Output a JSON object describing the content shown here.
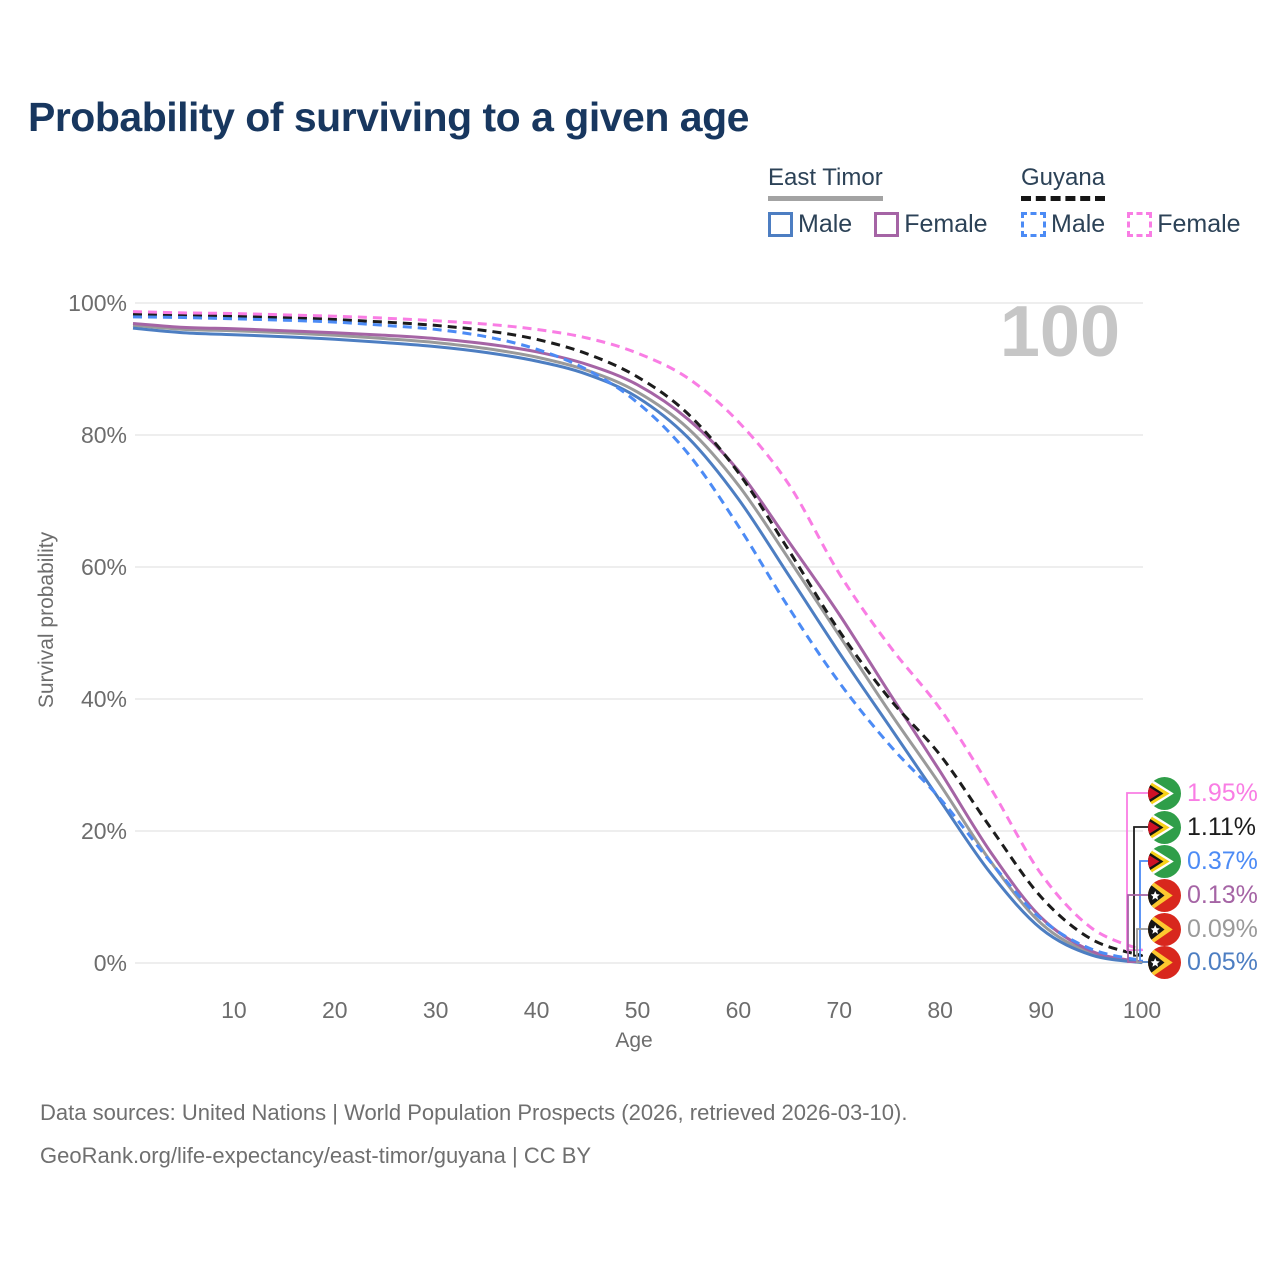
{
  "title": "Probability of surviving to a given age",
  "watermark": "100",
  "legend": {
    "groups": [
      {
        "label": "East Timor",
        "line_style": "solid",
        "underline_color": "#a3a3a3",
        "items": [
          {
            "label": "Male",
            "color": "#4d7ec2"
          },
          {
            "label": "Female",
            "color": "#a564a5"
          }
        ]
      },
      {
        "label": "Guyana",
        "line_style": "dashed",
        "underline_color": "#161616",
        "items": [
          {
            "label": "Male",
            "color": "#4c8bf5"
          },
          {
            "label": "Female",
            "color": "#f97de4"
          }
        ]
      }
    ]
  },
  "chart_data": {
    "type": "line",
    "title": "Probability of surviving to a given age",
    "xlabel": "Age",
    "ylabel": "Survival probability",
    "xlim": [
      0,
      100
    ],
    "ylim": [
      0,
      100
    ],
    "x": [
      0,
      5,
      10,
      15,
      20,
      25,
      30,
      35,
      40,
      45,
      50,
      55,
      60,
      65,
      70,
      75,
      80,
      85,
      90,
      95,
      100
    ],
    "x_ticks": [
      10,
      20,
      30,
      40,
      50,
      60,
      70,
      80,
      90,
      100
    ],
    "y_ticks": [
      {
        "value": 0,
        "label": "0%"
      },
      {
        "value": 20,
        "label": "20%"
      },
      {
        "value": 40,
        "label": "40%"
      },
      {
        "value": 60,
        "label": "60%"
      },
      {
        "value": 80,
        "label": "80%"
      },
      {
        "value": 100,
        "label": "100%"
      }
    ],
    "grid": true,
    "legend_position": "top-right",
    "age_marker": 100,
    "series": [
      {
        "name": "Guyana Female",
        "country": "Guyana",
        "sex": "Female",
        "color": "#f97de4",
        "dash": true,
        "flag": "guyana",
        "end_label": "1.95%",
        "values": [
          98.7,
          98.5,
          98.4,
          98.2,
          98.0,
          97.7,
          97.3,
          96.8,
          96.0,
          94.7,
          92.4,
          88.6,
          82.0,
          72.5,
          59.0,
          48.0,
          38.5,
          26.5,
          13.5,
          5.3,
          1.95
        ]
      },
      {
        "name": "Guyana",
        "country": "Guyana",
        "sex": "Both",
        "color": "#1c1c1c",
        "dash": true,
        "flag": "guyana",
        "end_label": "1.11%",
        "values": [
          98.3,
          98.1,
          98.0,
          97.8,
          97.5,
          97.1,
          96.6,
          95.8,
          94.5,
          92.3,
          88.8,
          83.2,
          74.3,
          62.5,
          50.3,
          40.0,
          31.5,
          20.5,
          10.0,
          3.6,
          1.11
        ]
      },
      {
        "name": "Guyana Male",
        "country": "Guyana",
        "sex": "Male",
        "color": "#4c8bf5",
        "dash": true,
        "flag": "guyana",
        "end_label": "0.37%",
        "values": [
          97.9,
          97.8,
          97.6,
          97.4,
          97.1,
          96.6,
          96.0,
          94.9,
          93.0,
          89.9,
          84.9,
          77.2,
          66.2,
          53.8,
          42.5,
          33.0,
          24.9,
          15.3,
          6.7,
          2.1,
          0.37
        ]
      },
      {
        "name": "East Timor Female",
        "country": "East Timor",
        "sex": "Female",
        "color": "#a564a5",
        "dash": false,
        "flag": "east-timor",
        "end_label": "0.13%",
        "values": [
          96.9,
          96.3,
          96.1,
          95.8,
          95.5,
          95.1,
          94.6,
          93.8,
          92.6,
          90.7,
          87.6,
          82.4,
          74.6,
          63.8,
          52.8,
          40.8,
          29.0,
          16.8,
          6.9,
          1.8,
          0.13
        ]
      },
      {
        "name": "East Timor",
        "country": "East Timor",
        "sex": "Both",
        "color": "#9a9a9a",
        "dash": false,
        "flag": "east-timor",
        "end_label": "0.09%",
        "values": [
          96.6,
          96.0,
          95.8,
          95.5,
          95.1,
          94.6,
          94.0,
          93.1,
          91.8,
          89.8,
          86.5,
          81.0,
          72.4,
          61.2,
          49.6,
          38.0,
          27.0,
          15.4,
          6.0,
          1.5,
          0.09
        ]
      },
      {
        "name": "East Timor Male",
        "country": "East Timor",
        "sex": "Male",
        "color": "#4d7ec2",
        "dash": false,
        "flag": "east-timor",
        "end_label": "0.05%",
        "values": [
          96.2,
          95.5,
          95.2,
          94.9,
          94.5,
          94.0,
          93.4,
          92.5,
          91.2,
          89.2,
          85.7,
          79.6,
          70.3,
          58.7,
          47.0,
          35.8,
          24.6,
          13.6,
          5.2,
          1.2,
          0.05
        ]
      }
    ]
  },
  "footer": {
    "line1": "Data sources: United Nations | World Population Prospects (2026, retrieved 2026-03-10).",
    "line2": "GeoRank.org/life-expectancy/east-timor/guyana | CC BY"
  }
}
